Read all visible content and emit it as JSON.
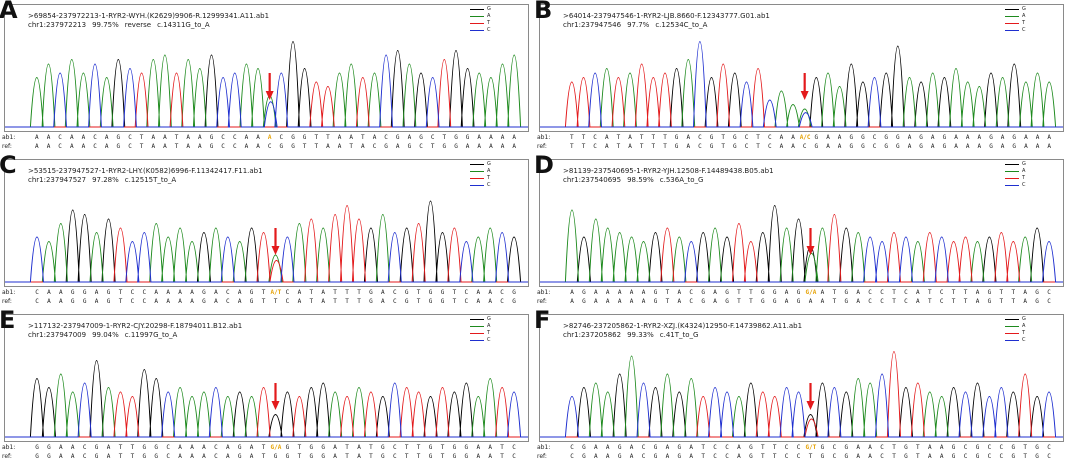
{
  "chart_data": [
    {
      "type": "line",
      "panel": "A",
      "title": ">69854-237972213-1-RYR2-WYH.(K2629)9906-R.12999341.A11.ab1",
      "info": {
        "pos": "chr1:237972213",
        "identity": "99.75%",
        "strand": "reverse",
        "mutation": "c.14311G_to_A"
      },
      "legend": [
        "G",
        "A",
        "T",
        "C"
      ],
      "read_label": "ab1:",
      "ref_label": "ref:",
      "read": [
        "A",
        "A",
        "C",
        "A",
        "A",
        "C",
        "A",
        "G",
        "C",
        "T",
        "A",
        "A",
        "T",
        "A",
        "A",
        "G",
        "C",
        "C",
        "A",
        "A",
        "A",
        "C",
        "G",
        "G",
        "T",
        "T",
        "A",
        "A",
        "T",
        "A",
        "C",
        "G",
        "A",
        "G",
        "C",
        "T",
        "G",
        "G",
        "A",
        "A",
        "A",
        "A"
      ],
      "ref": [
        "A",
        "A",
        "C",
        "A",
        "A",
        "C",
        "A",
        "G",
        "C",
        "T",
        "A",
        "A",
        "T",
        "A",
        "A",
        "G",
        "C",
        "C",
        "A",
        "A",
        "C",
        "G",
        "G",
        "T",
        "T",
        "A",
        "A",
        "T",
        "A",
        "C",
        "G",
        "A",
        "G",
        "C",
        "T",
        "G",
        "G",
        "A",
        "A",
        "A",
        "A",
        "A"
      ],
      "mutation_index": 20,
      "mutation_read_label": "A",
      "peak_heights": [
        0.55,
        0.7,
        0.6,
        0.75,
        0.6,
        0.7,
        0.55,
        0.75,
        0.65,
        0.6,
        0.75,
        0.8,
        0.6,
        0.75,
        0.65,
        0.8,
        0.55,
        0.6,
        0.7,
        0.65,
        0.35,
        0.6,
        0.95,
        0.65,
        0.5,
        0.45,
        0.6,
        0.7,
        0.55,
        0.6,
        0.8,
        0.85,
        0.7,
        0.6,
        0.55,
        0.75,
        0.85,
        0.65,
        0.6,
        0.55,
        0.7,
        0.8
      ]
    },
    {
      "type": "line",
      "panel": "B",
      "title": ">64014-237947546-1-RYR2-LJB.8660-F.12343777.G01.ab1",
      "info": {
        "pos": "chr1:237947546",
        "identity": "97.7%",
        "strand": "",
        "mutation": "c.12534C_to_A"
      },
      "legend": [
        "G",
        "A",
        "T",
        "C"
      ],
      "read_label": "ab1:",
      "ref_label": "ref:",
      "read": [
        "T",
        "T",
        "C",
        "A",
        "T",
        "A",
        "T",
        "T",
        "T",
        "G",
        "A",
        "C",
        "G",
        "T",
        "G",
        "C",
        "T",
        "C",
        "A",
        "A",
        "A",
        "G",
        "A",
        "A",
        "G",
        "G",
        "C",
        "G",
        "G",
        "A",
        "G",
        "A",
        "G",
        "A",
        "A",
        "A",
        "G",
        "A",
        "G",
        "A",
        "A",
        "A"
      ],
      "ref": [
        "T",
        "T",
        "C",
        "A",
        "T",
        "A",
        "T",
        "T",
        "T",
        "G",
        "A",
        "C",
        "G",
        "T",
        "G",
        "C",
        "T",
        "C",
        "A",
        "A",
        "C",
        "G",
        "A",
        "A",
        "G",
        "G",
        "C",
        "G",
        "G",
        "A",
        "G",
        "A",
        "G",
        "A",
        "A",
        "A",
        "G",
        "A",
        "G",
        "A",
        "A",
        "A"
      ],
      "mutation_index": 20,
      "mutation_read_label": "A/C",
      "peak_heights": [
        0.5,
        0.55,
        0.6,
        0.65,
        0.55,
        0.6,
        0.7,
        0.55,
        0.6,
        0.65,
        0.75,
        0.95,
        0.55,
        0.7,
        0.6,
        0.5,
        0.65,
        0.3,
        0.4,
        0.25,
        0.2,
        0.55,
        0.6,
        0.45,
        0.7,
        0.5,
        0.55,
        0.6,
        0.9,
        0.55,
        0.5,
        0.6,
        0.55,
        0.65,
        0.5,
        0.45,
        0.6,
        0.55,
        0.7,
        0.5,
        0.6,
        0.5
      ]
    },
    {
      "type": "line",
      "panel": "C",
      "title": ">53515-237947527-1-RYR2-LHY.(K0582)6996-F.11342417.F11.ab1",
      "info": {
        "pos": "chr1:237947527",
        "identity": "97.28%",
        "strand": "",
        "mutation": "c.12515T_to_A"
      },
      "legend": [
        "G",
        "A",
        "T",
        "C"
      ],
      "read_label": "ab1:",
      "ref_label": "ref:",
      "read": [
        "C",
        "A",
        "A",
        "G",
        "G",
        "A",
        "G",
        "T",
        "C",
        "C",
        "A",
        "A",
        "A",
        "A",
        "G",
        "A",
        "C",
        "A",
        "G",
        "T",
        "A",
        "C",
        "A",
        "T",
        "A",
        "T",
        "T",
        "T",
        "G",
        "A",
        "C",
        "G",
        "T",
        "G",
        "G",
        "T",
        "C",
        "A",
        "A",
        "C",
        "G"
      ],
      "ref": [
        "C",
        "A",
        "A",
        "G",
        "G",
        "A",
        "G",
        "T",
        "C",
        "C",
        "A",
        "A",
        "A",
        "A",
        "G",
        "A",
        "C",
        "A",
        "G",
        "T",
        "T",
        "C",
        "A",
        "T",
        "A",
        "T",
        "T",
        "T",
        "G",
        "A",
        "C",
        "G",
        "T",
        "G",
        "G",
        "T",
        "C",
        "A",
        "A",
        "C",
        "G"
      ],
      "mutation_index": 20,
      "mutation_read_label": "A/T",
      "peak_heights": [
        0.5,
        0.45,
        0.65,
        0.8,
        0.75,
        0.55,
        0.7,
        0.6,
        0.45,
        0.55,
        0.65,
        0.5,
        0.6,
        0.45,
        0.55,
        0.6,
        0.5,
        0.45,
        0.6,
        0.55,
        0.3,
        0.5,
        0.65,
        0.7,
        0.6,
        0.75,
        0.85,
        0.7,
        0.6,
        0.75,
        0.55,
        0.6,
        0.65,
        0.9,
        0.55,
        0.6,
        0.45,
        0.5,
        0.6,
        0.55,
        0.5
      ]
    },
    {
      "type": "line",
      "panel": "D",
      "title": ">81139-237540695-1-RYR2-YJH.12508-F.14489438.B05.ab1",
      "info": {
        "pos": "chr1:237540695",
        "identity": "98.59%",
        "strand": "",
        "mutation": "c.536A_to_G"
      },
      "legend": [
        "G",
        "A",
        "T",
        "C"
      ],
      "read_label": "ab1:",
      "ref_label": "ref:",
      "read": [
        "A",
        "G",
        "A",
        "A",
        "A",
        "A",
        "A",
        "G",
        "T",
        "A",
        "C",
        "G",
        "A",
        "G",
        "T",
        "T",
        "G",
        "G",
        "A",
        "G",
        "G",
        "A",
        "T",
        "G",
        "A",
        "C",
        "C",
        "T",
        "C",
        "A",
        "T",
        "C",
        "T",
        "T",
        "A",
        "G",
        "T",
        "T",
        "A",
        "G",
        "C"
      ],
      "ref": [
        "A",
        "G",
        "A",
        "A",
        "A",
        "A",
        "A",
        "G",
        "T",
        "A",
        "C",
        "G",
        "A",
        "G",
        "T",
        "T",
        "G",
        "G",
        "A",
        "G",
        "A",
        "A",
        "T",
        "G",
        "A",
        "C",
        "C",
        "T",
        "C",
        "A",
        "T",
        "C",
        "T",
        "T",
        "A",
        "G",
        "T",
        "T",
        "A",
        "G",
        "C"
      ],
      "mutation_index": 20,
      "mutation_read_label": "G/A",
      "peak_heights": [
        0.8,
        0.5,
        0.7,
        0.6,
        0.55,
        0.5,
        0.45,
        0.55,
        0.6,
        0.5,
        0.45,
        0.55,
        0.6,
        0.5,
        0.65,
        0.45,
        0.55,
        0.85,
        0.6,
        0.7,
        0.4,
        0.6,
        0.75,
        0.6,
        0.55,
        0.5,
        0.45,
        0.55,
        0.5,
        0.45,
        0.55,
        0.5,
        0.45,
        0.5,
        0.45,
        0.5,
        0.55,
        0.45,
        0.5,
        0.6,
        0.45
      ]
    },
    {
      "type": "line",
      "panel": "E",
      "title": ">117132-237947009-1-RYR2-CJY.20298-F.18794011.B12.ab1",
      "info": {
        "pos": "chr1:237947009",
        "identity": "99.04%",
        "strand": "",
        "mutation": "c.11997G_to_A"
      },
      "legend": [
        "G",
        "A",
        "T",
        "C"
      ],
      "read_label": "ab1:",
      "ref_label": "ref:",
      "read": [
        "G",
        "G",
        "A",
        "A",
        "C",
        "G",
        "A",
        "T",
        "T",
        "G",
        "G",
        "C",
        "A",
        "A",
        "A",
        "C",
        "A",
        "G",
        "A",
        "T",
        "A",
        "G",
        "T",
        "G",
        "G",
        "A",
        "T",
        "A",
        "T",
        "G",
        "C",
        "T",
        "T",
        "G",
        "T",
        "G",
        "G",
        "A",
        "A",
        "T",
        "C"
      ],
      "ref": [
        "G",
        "G",
        "A",
        "A",
        "C",
        "G",
        "A",
        "T",
        "T",
        "G",
        "G",
        "C",
        "A",
        "A",
        "A",
        "C",
        "A",
        "G",
        "A",
        "T",
        "G",
        "G",
        "T",
        "G",
        "G",
        "A",
        "T",
        "A",
        "T",
        "G",
        "C",
        "T",
        "T",
        "G",
        "T",
        "G",
        "G",
        "A",
        "A",
        "T",
        "C"
      ],
      "mutation_index": 20,
      "mutation_read_label": "G/A",
      "peak_heights": [
        0.65,
        0.55,
        0.7,
        0.5,
        0.6,
        0.85,
        0.55,
        0.5,
        0.45,
        0.75,
        0.65,
        0.5,
        0.55,
        0.45,
        0.5,
        0.55,
        0.45,
        0.5,
        0.45,
        0.55,
        0.25,
        0.5,
        0.45,
        0.55,
        0.6,
        0.5,
        0.45,
        0.55,
        0.5,
        0.45,
        0.6,
        0.55,
        0.5,
        0.45,
        0.55,
        0.5,
        0.6,
        0.45,
        0.65,
        0.55,
        0.5
      ]
    },
    {
      "type": "line",
      "panel": "F",
      "title": ">82746-237205862-1-RYR2-XZJ.(K4324)12950-F.14739862.A11.ab1",
      "info": {
        "pos": "chr1:237205862",
        "identity": "99.33%",
        "strand": "",
        "mutation": "c.41T_to_G"
      },
      "legend": [
        "G",
        "A",
        "T",
        "C"
      ],
      "read_label": "ab1:",
      "ref_label": "ref:",
      "read": [
        "C",
        "G",
        "A",
        "A",
        "G",
        "A",
        "C",
        "G",
        "A",
        "G",
        "A",
        "T",
        "C",
        "C",
        "A",
        "G",
        "T",
        "T",
        "C",
        "C",
        "G",
        "G",
        "C",
        "G",
        "A",
        "A",
        "C",
        "T",
        "G",
        "T",
        "A",
        "A",
        "G",
        "C",
        "G",
        "C",
        "C",
        "G",
        "T",
        "G",
        "C"
      ],
      "ref": [
        "C",
        "G",
        "A",
        "A",
        "G",
        "A",
        "C",
        "G",
        "A",
        "G",
        "A",
        "T",
        "C",
        "C",
        "A",
        "G",
        "T",
        "T",
        "C",
        "C",
        "T",
        "G",
        "C",
        "G",
        "A",
        "A",
        "C",
        "T",
        "G",
        "T",
        "A",
        "A",
        "G",
        "C",
        "G",
        "C",
        "C",
        "G",
        "T",
        "G",
        "C"
      ],
      "mutation_index": 20,
      "mutation_read_label": "G/T",
      "peak_heights": [
        0.45,
        0.55,
        0.6,
        0.5,
        0.7,
        0.9,
        0.6,
        0.55,
        0.7,
        0.5,
        0.65,
        0.45,
        0.55,
        0.5,
        0.45,
        0.6,
        0.5,
        0.45,
        0.55,
        0.5,
        0.25,
        0.6,
        0.55,
        0.5,
        0.65,
        0.6,
        0.7,
        0.95,
        0.55,
        0.6,
        0.5,
        0.45,
        0.55,
        0.5,
        0.6,
        0.45,
        0.55,
        0.5,
        0.7,
        0.45,
        0.5
      ]
    }
  ],
  "colors": {
    "G": "#000000",
    "A": "#1e8a1e",
    "T": "#e31a1c",
    "C": "#1f2fcf",
    "arrow": "#e31a1c",
    "mutation_text": "#e6a100"
  }
}
